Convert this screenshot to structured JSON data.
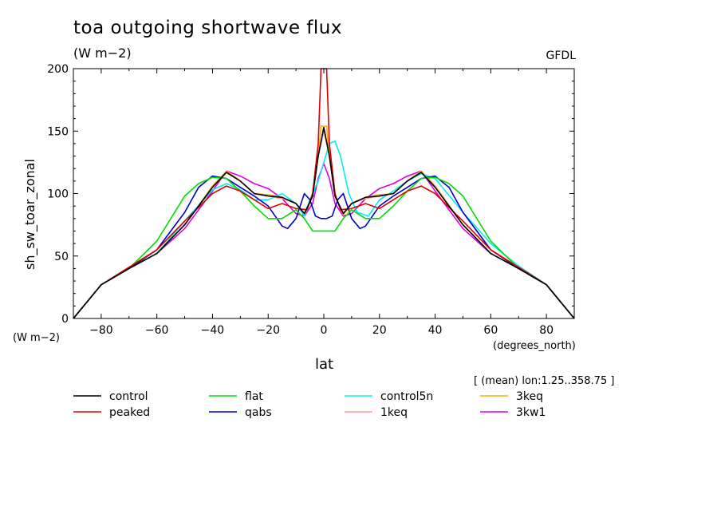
{
  "chart_data": {
    "type": "line",
    "title": "toa outgoing shortwave flux",
    "units": "(W m−2)",
    "credit": "GFDL",
    "ylabel": "sh_sw_toar_zonal",
    "yunits": "(W m−2)",
    "xlabel": "lat",
    "xunits": "(degrees_north)",
    "subset_note": "[ (mean) lon:1.25..358.75 ]",
    "xlim": [
      -90,
      90
    ],
    "ylim": [
      0,
      200
    ],
    "x_ticks": [
      -80,
      -60,
      -40,
      -20,
      0,
      20,
      40,
      60,
      80
    ],
    "x_tick_labels": [
      "−80",
      "−60",
      "−40",
      "−20",
      "0",
      "20",
      "40",
      "60",
      "80"
    ],
    "y_ticks": [
      0,
      50,
      100,
      150,
      200
    ],
    "y_tick_labels": [
      "0",
      "50",
      "100",
      "150",
      "200"
    ],
    "legend_position": "below",
    "series": [
      {
        "name": "control",
        "color": "#000000",
        "x": [
          -90,
          -80,
          -70,
          -60,
          -50,
          -40,
          -35,
          -30,
          -25,
          -20,
          -15,
          -10,
          -7,
          -4,
          -2,
          0,
          2,
          4,
          7,
          10,
          15,
          20,
          25,
          30,
          35,
          40,
          50,
          60,
          70,
          80,
          90
        ],
        "y": [
          0,
          27,
          40,
          52,
          75,
          105,
          117,
          110,
          100,
          98,
          97,
          92,
          84,
          98,
          130,
          153,
          130,
          98,
          84,
          92,
          97,
          98,
          100,
          110,
          117,
          105,
          75,
          52,
          40,
          27,
          0
        ]
      },
      {
        "name": "peaked",
        "color": "#e00000",
        "x": [
          -90,
          -80,
          -70,
          -60,
          -50,
          -40,
          -35,
          -30,
          -25,
          -20,
          -15,
          -10,
          -6,
          -4,
          -2,
          -1,
          0,
          1,
          2,
          4,
          6,
          10,
          15,
          20,
          25,
          30,
          35,
          40,
          50,
          60,
          70,
          80,
          90
        ],
        "y": [
          0,
          27,
          41,
          55,
          78,
          100,
          106,
          102,
          95,
          88,
          92,
          88,
          87,
          100,
          140,
          200,
          200,
          200,
          140,
          100,
          87,
          88,
          92,
          88,
          95,
          102,
          106,
          100,
          78,
          55,
          41,
          27,
          0
        ]
      },
      {
        "name": "flat",
        "color": "#00dd00",
        "x": [
          -90,
          -80,
          -70,
          -60,
          -50,
          -45,
          -40,
          -35,
          -30,
          -25,
          -20,
          -15,
          -10,
          -7,
          -4,
          0,
          4,
          7,
          10,
          15,
          20,
          25,
          30,
          35,
          40,
          45,
          50,
          60,
          70,
          80,
          90
        ],
        "y": [
          0,
          27,
          40,
          62,
          98,
          108,
          113,
          112,
          102,
          90,
          80,
          80,
          87,
          80,
          70,
          70,
          70,
          80,
          87,
          80,
          80,
          90,
          102,
          112,
          113,
          108,
          98,
          62,
          40,
          27,
          0
        ]
      },
      {
        "name": "qabs",
        "color": "#0000cc",
        "x": [
          -90,
          -80,
          -70,
          -60,
          -50,
          -45,
          -40,
          -35,
          -30,
          -25,
          -20,
          -15,
          -13,
          -10,
          -7,
          -5,
          -3,
          -1,
          1,
          3,
          5,
          7,
          10,
          13,
          15,
          20,
          25,
          30,
          35,
          40,
          45,
          50,
          60,
          70,
          80,
          90
        ],
        "y": [
          0,
          27,
          40,
          55,
          85,
          105,
          114,
          112,
          105,
          98,
          90,
          74,
          72,
          80,
          100,
          95,
          82,
          80,
          80,
          82,
          95,
          100,
          80,
          72,
          74,
          90,
          98,
          105,
          112,
          114,
          105,
          85,
          55,
          40,
          27,
          0
        ]
      },
      {
        "name": "control5n",
        "color": "#00eeee",
        "x": [
          -90,
          -80,
          -70,
          -60,
          -50,
          -40,
          -35,
          -30,
          -25,
          -20,
          -15,
          -10,
          -7,
          -5,
          -2,
          0,
          2,
          4,
          6,
          9,
          12,
          16,
          20,
          25,
          30,
          35,
          40,
          50,
          60,
          70,
          80,
          90
        ],
        "y": [
          0,
          27,
          40,
          52,
          78,
          103,
          108,
          103,
          95,
          95,
          100,
          92,
          82,
          95,
          110,
          125,
          140,
          142,
          130,
          100,
          85,
          82,
          95,
          102,
          110,
          116,
          112,
          85,
          60,
          42,
          27,
          0
        ]
      },
      {
        "name": "1keq",
        "color": "#ff9999",
        "x": [
          -90,
          -80,
          -70,
          -60,
          -50,
          -40,
          -35,
          -30,
          -25,
          -20,
          -15,
          -10,
          -7,
          -4,
          -2,
          0,
          2,
          4,
          7,
          10,
          15,
          20,
          25,
          30,
          35,
          40,
          50,
          60,
          70,
          80,
          90
        ],
        "y": [
          0,
          27,
          40,
          52,
          75,
          105,
          117,
          110,
          100,
          98,
          96,
          92,
          84,
          98,
          130,
          150,
          130,
          98,
          84,
          92,
          96,
          98,
          100,
          110,
          117,
          105,
          75,
          52,
          40,
          27,
          0
        ]
      },
      {
        "name": "3keq",
        "color": "#ffaa00",
        "x": [
          -90,
          -80,
          -70,
          -60,
          -50,
          -40,
          -35,
          -30,
          -25,
          -20,
          -15,
          -10,
          -7,
          -4,
          -2,
          -1,
          0,
          1,
          2,
          4,
          7,
          10,
          15,
          20,
          25,
          30,
          35,
          40,
          50,
          60,
          70,
          80,
          90
        ],
        "y": [
          0,
          27,
          40,
          52,
          75,
          106,
          118,
          110,
          100,
          99,
          97,
          92,
          83,
          98,
          130,
          154,
          154,
          154,
          130,
          98,
          83,
          92,
          97,
          99,
          100,
          110,
          118,
          106,
          75,
          52,
          40,
          27,
          0
        ]
      },
      {
        "name": "3kw1",
        "color": "#dd00dd",
        "x": [
          -90,
          -80,
          -70,
          -60,
          -50,
          -40,
          -35,
          -30,
          -25,
          -20,
          -15,
          -10,
          -7,
          -4,
          -2,
          0,
          2,
          4,
          7,
          10,
          15,
          20,
          25,
          30,
          35,
          40,
          50,
          60,
          70,
          80,
          90
        ],
        "y": [
          0,
          27,
          40,
          52,
          72,
          102,
          118,
          114,
          108,
          104,
          96,
          84,
          82,
          92,
          112,
          124,
          112,
          92,
          82,
          84,
          96,
          104,
          108,
          114,
          118,
          102,
          72,
          52,
          40,
          27,
          0
        ]
      }
    ]
  }
}
